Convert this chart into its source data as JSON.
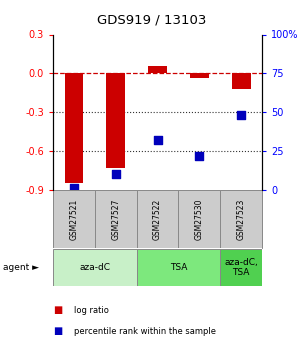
{
  "title": "GDS919 / 13103",
  "samples": [
    "GSM27521",
    "GSM27527",
    "GSM27522",
    "GSM27530",
    "GSM27523"
  ],
  "log_ratio": [
    -0.85,
    -0.73,
    0.055,
    -0.035,
    -0.12
  ],
  "percentile_rank": [
    1,
    10,
    32,
    22,
    48
  ],
  "ylim_left": [
    -0.9,
    0.3
  ],
  "ylim_right": [
    0,
    100
  ],
  "yticks_left": [
    0.3,
    0.0,
    -0.3,
    -0.6,
    -0.9
  ],
  "yticks_right": [
    100,
    75,
    50,
    25,
    0
  ],
  "agents": [
    {
      "label": "aza-dC",
      "cols": [
        0,
        1
      ],
      "color": "#c8f0c8"
    },
    {
      "label": "TSA",
      "cols": [
        2,
        3
      ],
      "color": "#7de87d"
    },
    {
      "label": "aza-dC,\nTSA",
      "cols": [
        4
      ],
      "color": "#50d050"
    }
  ],
  "bar_color": "#cc0000",
  "point_color": "#0000bb",
  "bar_width": 0.45,
  "point_size": 40,
  "hline_color": "#cc0000",
  "dotted_color": "#333333",
  "label_box_color": "#cccccc",
  "legend_red": "log ratio",
  "legend_blue": "percentile rank within the sample"
}
